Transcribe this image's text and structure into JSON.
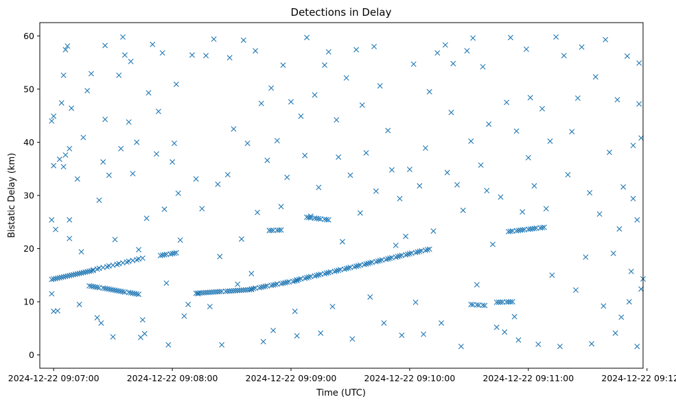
{
  "chart_data": {
    "type": "scatter",
    "title": "Detections in Delay",
    "xlabel": "Time (UTC)",
    "ylabel": "Bistatic Delay (km)",
    "x_axis_type": "time",
    "xlim": [
      "2024-12-22 09:06:53",
      "2024-12-22 09:11:58"
    ],
    "ylim": [
      -2.5,
      62.5
    ],
    "x_ticks": [
      "2024-12-22 09:07:00",
      "2024-12-22 09:08:00",
      "2024-12-22 09:09:00",
      "2024-12-22 09:10:00",
      "2024-12-22 09:11:00",
      "2024-12-22 09:12:00"
    ],
    "y_ticks": [
      0,
      10,
      20,
      30,
      40,
      50,
      60
    ],
    "grid": false,
    "legend": "none",
    "marker": "x",
    "color": "#1f77b4",
    "series": [
      {
        "points": [
          [
            "2024-12-22 09:06:59",
            25.4
          ],
          [
            "2024-12-22 09:07:01",
            23.6
          ],
          [
            "2024-12-22 09:07:00",
            35.6
          ],
          [
            "2024-12-22 09:07:03",
            36.8
          ],
          [
            "2024-12-22 09:07:05",
            35.4
          ],
          [
            "2024-12-22 09:07:06",
            37.6
          ],
          [
            "2024-12-22 09:07:08",
            38.8
          ],
          [
            "2024-12-22 09:06:59",
            44.0
          ],
          [
            "2024-12-22 09:07:00",
            44.9
          ],
          [
            "2024-12-22 09:07:04",
            47.4
          ],
          [
            "2024-12-22 09:07:05",
            52.6
          ],
          [
            "2024-12-22 09:07:06",
            57.4
          ],
          [
            "2024-12-22 09:07:07",
            58.1
          ],
          [
            "2024-12-22 09:07:09",
            46.4
          ],
          [
            "2024-12-22 09:06:59",
            11.5
          ],
          [
            "2024-12-22 09:07:00",
            8.2
          ],
          [
            "2024-12-22 09:07:02",
            8.3
          ],
          [
            "2024-12-22 09:07:08",
            25.4
          ],
          [
            "2024-12-22 09:07:08",
            21.9
          ],
          [
            "2024-12-22 09:07:12",
            33.1
          ],
          [
            "2024-12-22 09:07:15",
            40.9
          ],
          [
            "2024-12-22 09:07:14",
            19.4
          ],
          [
            "2024-12-22 09:07:13",
            9.5
          ],
          [
            "2024-12-22 09:07:17",
            49.7
          ],
          [
            "2024-12-22 09:07:19",
            52.9
          ],
          [
            "2024-12-22 09:07:23",
            29.1
          ],
          [
            "2024-12-22 09:07:25",
            36.3
          ],
          [
            "2024-12-22 09:07:26",
            44.3
          ],
          [
            "2024-12-22 09:07:26",
            58.2
          ],
          [
            "2024-12-22 09:07:28",
            33.8
          ],
          [
            "2024-12-22 09:07:22",
            7.0
          ],
          [
            "2024-12-22 09:07:24",
            6.0
          ],
          [
            "2024-12-22 09:07:30",
            3.4
          ],
          [
            "2024-12-22 09:07:31",
            21.7
          ],
          [
            "2024-12-22 09:07:33",
            52.6
          ],
          [
            "2024-12-22 09:07:34",
            38.8
          ],
          [
            "2024-12-22 09:07:35",
            59.8
          ],
          [
            "2024-12-22 09:07:36",
            56.4
          ],
          [
            "2024-12-22 09:07:38",
            43.8
          ],
          [
            "2024-12-22 09:07:39",
            55.2
          ],
          [
            "2024-12-22 09:07:40",
            34.1
          ],
          [
            "2024-12-22 09:07:42",
            40.0
          ],
          [
            "2024-12-22 09:07:43",
            19.8
          ],
          [
            "2024-12-22 09:07:44",
            3.3
          ],
          [
            "2024-12-22 09:07:46",
            4.0
          ],
          [
            "2024-12-22 09:07:45",
            6.6
          ],
          [
            "2024-12-22 09:07:47",
            25.7
          ],
          [
            "2024-12-22 09:07:48",
            49.3
          ],
          [
            "2024-12-22 09:07:50",
            58.4
          ],
          [
            "2024-12-22 09:07:52",
            37.8
          ],
          [
            "2024-12-22 09:07:53",
            45.8
          ],
          [
            "2024-12-22 09:07:55",
            56.8
          ],
          [
            "2024-12-22 09:07:56",
            27.4
          ],
          [
            "2024-12-22 09:07:57",
            13.5
          ],
          [
            "2024-12-22 09:07:58",
            1.9
          ],
          [
            "2024-12-22 09:08:00",
            36.3
          ],
          [
            "2024-12-22 09:08:01",
            39.8
          ],
          [
            "2024-12-22 09:08:02",
            50.9
          ],
          [
            "2024-12-22 09:08:03",
            30.4
          ],
          [
            "2024-12-22 09:08:04",
            21.6
          ],
          [
            "2024-12-22 09:08:06",
            7.3
          ],
          [
            "2024-12-22 09:08:08",
            9.5
          ],
          [
            "2024-12-22 09:08:10",
            56.4
          ],
          [
            "2024-12-22 09:08:12",
            33.1
          ],
          [
            "2024-12-22 09:08:13",
            11.5
          ],
          [
            "2024-12-22 09:08:15",
            27.5
          ],
          [
            "2024-12-22 09:08:17",
            56.3
          ],
          [
            "2024-12-22 09:08:19",
            9.1
          ],
          [
            "2024-12-22 09:08:21",
            59.4
          ],
          [
            "2024-12-22 09:08:23",
            32.1
          ],
          [
            "2024-12-22 09:08:24",
            18.5
          ],
          [
            "2024-12-22 09:08:25",
            1.9
          ],
          [
            "2024-12-22 09:08:28",
            33.9
          ],
          [
            "2024-12-22 09:08:29",
            55.9
          ],
          [
            "2024-12-22 09:08:31",
            42.5
          ],
          [
            "2024-12-22 09:08:33",
            13.3
          ],
          [
            "2024-12-22 09:08:35",
            21.8
          ],
          [
            "2024-12-22 09:08:36",
            59.2
          ],
          [
            "2024-12-22 09:08:38",
            39.8
          ],
          [
            "2024-12-22 09:08:40",
            15.3
          ],
          [
            "2024-12-22 09:08:42",
            57.2
          ],
          [
            "2024-12-22 09:08:43",
            26.8
          ],
          [
            "2024-12-22 09:08:45",
            47.3
          ],
          [
            "2024-12-22 09:08:46",
            2.5
          ],
          [
            "2024-12-22 09:08:48",
            36.6
          ],
          [
            "2024-12-22 09:08:50",
            50.2
          ],
          [
            "2024-12-22 09:08:51",
            4.6
          ],
          [
            "2024-12-22 09:08:53",
            40.3
          ],
          [
            "2024-12-22 09:08:55",
            27.9
          ],
          [
            "2024-12-22 09:08:56",
            54.5
          ],
          [
            "2024-12-22 09:08:58",
            33.4
          ],
          [
            "2024-12-22 09:09:00",
            47.6
          ],
          [
            "2024-12-22 09:09:02",
            8.2
          ],
          [
            "2024-12-22 09:09:03",
            3.6
          ],
          [
            "2024-12-22 09:09:05",
            44.9
          ],
          [
            "2024-12-22 09:09:07",
            37.5
          ],
          [
            "2024-12-22 09:09:08",
            59.7
          ],
          [
            "2024-12-22 09:09:10",
            26.1
          ],
          [
            "2024-12-22 09:09:12",
            48.9
          ],
          [
            "2024-12-22 09:09:14",
            31.5
          ],
          [
            "2024-12-22 09:09:15",
            4.1
          ],
          [
            "2024-12-22 09:09:17",
            54.5
          ],
          [
            "2024-12-22 09:09:19",
            57.0
          ],
          [
            "2024-12-22 09:09:21",
            9.1
          ],
          [
            "2024-12-22 09:09:23",
            44.2
          ],
          [
            "2024-12-22 09:09:24",
            37.2
          ],
          [
            "2024-12-22 09:09:26",
            21.3
          ],
          [
            "2024-12-22 09:09:28",
            52.1
          ],
          [
            "2024-12-22 09:09:30",
            33.8
          ],
          [
            "2024-12-22 09:09:31",
            3.0
          ],
          [
            "2024-12-22 09:09:33",
            57.4
          ],
          [
            "2024-12-22 09:09:35",
            26.7
          ],
          [
            "2024-12-22 09:09:36",
            47.0
          ],
          [
            "2024-12-22 09:09:38",
            38.0
          ],
          [
            "2024-12-22 09:09:40",
            10.9
          ],
          [
            "2024-12-22 09:09:42",
            58.0
          ],
          [
            "2024-12-22 09:09:43",
            30.8
          ],
          [
            "2024-12-22 09:09:45",
            50.6
          ],
          [
            "2024-12-22 09:09:47",
            6.0
          ],
          [
            "2024-12-22 09:09:49",
            42.2
          ],
          [
            "2024-12-22 09:09:51",
            34.8
          ],
          [
            "2024-12-22 09:09:53",
            20.6
          ],
          [
            "2024-12-22 09:09:55",
            29.4
          ],
          [
            "2024-12-22 09:09:56",
            3.7
          ],
          [
            "2024-12-22 09:09:58",
            22.3
          ],
          [
            "2024-12-22 09:10:00",
            34.9
          ],
          [
            "2024-12-22 09:10:02",
            54.7
          ],
          [
            "2024-12-22 09:10:03",
            9.9
          ],
          [
            "2024-12-22 09:10:05",
            31.8
          ],
          [
            "2024-12-22 09:10:07",
            3.9
          ],
          [
            "2024-12-22 09:10:08",
            38.9
          ],
          [
            "2024-12-22 09:10:10",
            49.5
          ],
          [
            "2024-12-22 09:10:12",
            23.3
          ],
          [
            "2024-12-22 09:10:14",
            56.8
          ],
          [
            "2024-12-22 09:10:16",
            6.0
          ],
          [
            "2024-12-22 09:10:18",
            58.3
          ],
          [
            "2024-12-22 09:10:19",
            34.3
          ],
          [
            "2024-12-22 09:10:21",
            45.6
          ],
          [
            "2024-12-22 09:10:22",
            54.8
          ],
          [
            "2024-12-22 09:10:24",
            32.0
          ],
          [
            "2024-12-22 09:10:26",
            1.6
          ],
          [
            "2024-12-22 09:10:27",
            27.2
          ],
          [
            "2024-12-22 09:10:29",
            57.2
          ],
          [
            "2024-12-22 09:10:31",
            40.2
          ],
          [
            "2024-12-22 09:10:32",
            59.6
          ],
          [
            "2024-12-22 09:10:34",
            13.2
          ],
          [
            "2024-12-22 09:10:36",
            35.7
          ],
          [
            "2024-12-22 09:10:37",
            54.2
          ],
          [
            "2024-12-22 09:10:39",
            30.9
          ],
          [
            "2024-12-22 09:10:40",
            43.4
          ],
          [
            "2024-12-22 09:10:42",
            20.8
          ],
          [
            "2024-12-22 09:10:44",
            5.2
          ],
          [
            "2024-12-22 09:10:46",
            29.7
          ],
          [
            "2024-12-22 09:10:48",
            4.3
          ],
          [
            "2024-12-22 09:10:49",
            47.5
          ],
          [
            "2024-12-22 09:10:51",
            59.7
          ],
          [
            "2024-12-22 09:10:53",
            7.2
          ],
          [
            "2024-12-22 09:10:54",
            42.1
          ],
          [
            "2024-12-22 09:10:55",
            2.8
          ],
          [
            "2024-12-22 09:10:57",
            26.9
          ],
          [
            "2024-12-22 09:10:59",
            57.5
          ],
          [
            "2024-12-22 09:11:00",
            37.1
          ],
          [
            "2024-12-22 09:11:01",
            48.4
          ],
          [
            "2024-12-22 09:11:03",
            31.8
          ],
          [
            "2024-12-22 09:11:05",
            2.0
          ],
          [
            "2024-12-22 09:11:07",
            46.3
          ],
          [
            "2024-12-22 09:11:09",
            27.5
          ],
          [
            "2024-12-22 09:11:11",
            40.2
          ],
          [
            "2024-12-22 09:11:12",
            15.0
          ],
          [
            "2024-12-22 09:11:14",
            59.8
          ],
          [
            "2024-12-22 09:11:16",
            1.6
          ],
          [
            "2024-12-22 09:11:18",
            56.3
          ],
          [
            "2024-12-22 09:11:20",
            33.9
          ],
          [
            "2024-12-22 09:11:22",
            42.0
          ],
          [
            "2024-12-22 09:11:24",
            12.2
          ],
          [
            "2024-12-22 09:11:25",
            48.3
          ],
          [
            "2024-12-22 09:11:27",
            57.9
          ],
          [
            "2024-12-22 09:11:29",
            18.4
          ],
          [
            "2024-12-22 09:11:31",
            30.5
          ],
          [
            "2024-12-22 09:11:32",
            2.1
          ],
          [
            "2024-12-22 09:11:34",
            52.3
          ],
          [
            "2024-12-22 09:11:36",
            26.5
          ],
          [
            "2024-12-22 09:11:38",
            9.2
          ],
          [
            "2024-12-22 09:11:39",
            59.3
          ],
          [
            "2024-12-22 09:11:41",
            38.1
          ],
          [
            "2024-12-22 09:11:43",
            19.1
          ],
          [
            "2024-12-22 09:11:45",
            48.0
          ],
          [
            "2024-12-22 09:11:47",
            7.1
          ],
          [
            "2024-12-22 09:11:48",
            31.6
          ],
          [
            "2024-12-22 09:11:50",
            56.2
          ],
          [
            "2024-12-22 09:11:52",
            15.7
          ],
          [
            "2024-12-22 09:11:53",
            39.4
          ],
          [
            "2024-12-22 09:11:55",
            25.4
          ],
          [
            "2024-12-22 09:11:56",
            54.9
          ],
          [
            "2024-12-22 09:11:57",
            40.8
          ],
          [
            "2024-12-22 09:11:58",
            14.3
          ],
          [
            "2024-12-22 09:11:55",
            1.6
          ],
          [
            "2024-12-22 09:11:57",
            12.4
          ],
          [
            "2024-12-22 09:11:56",
            47.2
          ],
          [
            "2024-12-22 09:11:53",
            29.4
          ],
          [
            "2024-12-22 09:11:51",
            10.0
          ],
          [
            "2024-12-22 09:11:46",
            23.7
          ],
          [
            "2024-12-22 09:11:44",
            4.1
          ]
        ]
      }
    ],
    "tracks": [
      {
        "from": [
          "2024-12-22 09:06:59",
          14.2
        ],
        "to": [
          "2024-12-22 09:07:20",
          15.9
        ],
        "count": 22
      },
      {
        "from": [
          "2024-12-22 09:07:18",
          13.0
        ],
        "to": [
          "2024-12-22 09:07:43",
          11.4
        ],
        "count": 24
      },
      {
        "from": [
          "2024-12-22 09:07:20",
          16.0
        ],
        "to": [
          "2024-12-22 09:07:45",
          18.2
        ],
        "count": 16
      },
      {
        "from": [
          "2024-12-22 09:07:54",
          18.7
        ],
        "to": [
          "2024-12-22 09:08:02",
          19.2
        ],
        "count": 8
      },
      {
        "from": [
          "2024-12-22 09:08:12",
          11.6
        ],
        "to": [
          "2024-12-22 09:08:40",
          12.3
        ],
        "count": 28
      },
      {
        "from": [
          "2024-12-22 09:08:40",
          12.4
        ],
        "to": [
          "2024-12-22 09:09:03",
          14.0
        ],
        "count": 20
      },
      {
        "from": [
          "2024-12-22 09:09:03",
          14.1
        ],
        "to": [
          "2024-12-22 09:10:10",
          19.9
        ],
        "count": 55
      },
      {
        "from": [
          "2024-12-22 09:08:49",
          23.4
        ],
        "to": [
          "2024-12-22 09:08:55",
          23.5
        ],
        "count": 6
      },
      {
        "from": [
          "2024-12-22 09:09:08",
          25.9
        ],
        "to": [
          "2024-12-22 09:09:19",
          25.4
        ],
        "count": 10
      },
      {
        "from": [
          "2024-12-22 09:10:50",
          23.2
        ],
        "to": [
          "2024-12-22 09:11:08",
          24.0
        ],
        "count": 16
      },
      {
        "from": [
          "2024-12-22 09:10:31",
          9.5
        ],
        "to": [
          "2024-12-22 09:10:38",
          9.3
        ],
        "count": 6
      },
      {
        "from": [
          "2024-12-22 09:10:44",
          9.9
        ],
        "to": [
          "2024-12-22 09:10:52",
          10.0
        ],
        "count": 8
      }
    ]
  }
}
